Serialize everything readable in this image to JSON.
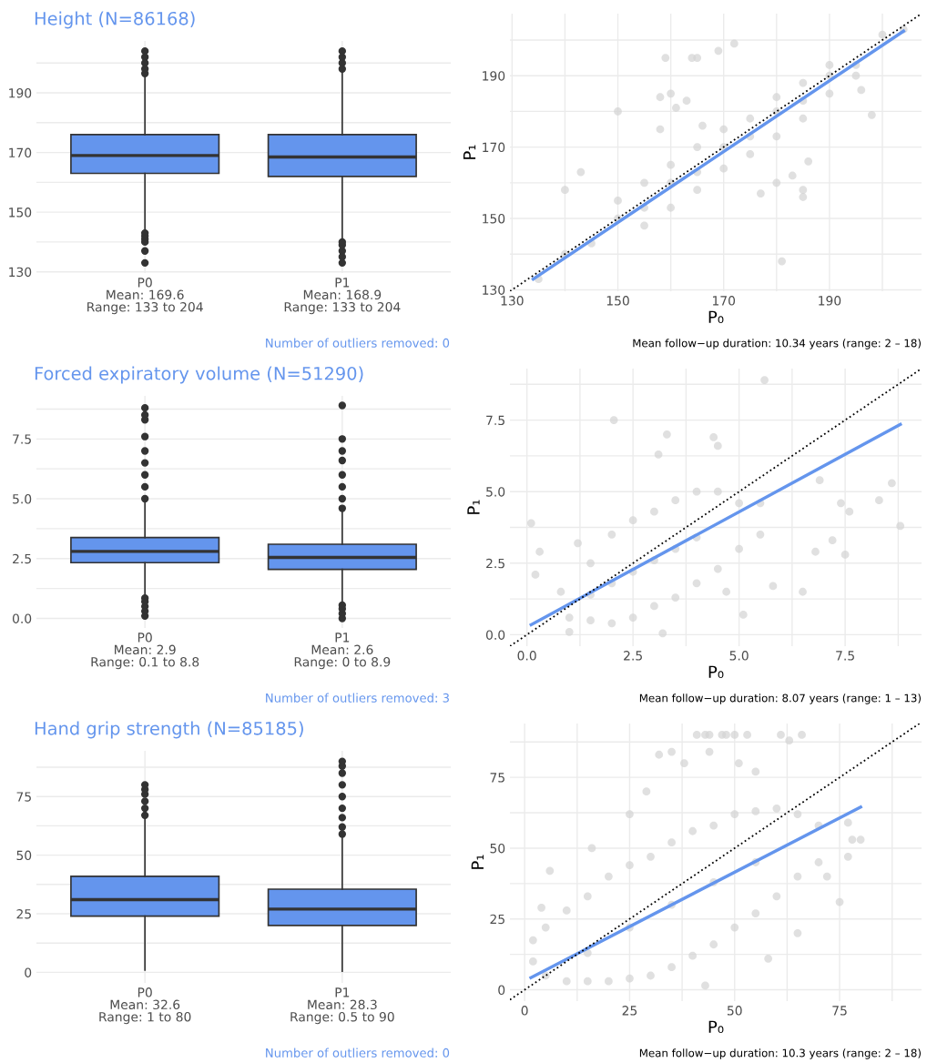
{
  "chart_data": [
    {
      "type": "box",
      "title": "Height (N=86168)",
      "categories": [
        "P0\nMean: 169.6\nRange: 133 to 204",
        "P1\nMean: 168.9\nRange: 133 to 204"
      ],
      "series": [
        {
          "color": "#6495ed",
          "boxes": [
            {
              "low": 143.5,
              "q1": 163,
              "median": 169,
              "q3": 176,
              "high": 196,
              "outliers": [
                133,
                137,
                140,
                141,
                142,
                143,
                196.5,
                198,
                200,
                202,
                204
              ]
            },
            {
              "low": 141,
              "q1": 162,
              "median": 168.5,
              "q3": 176,
              "high": 197,
              "outliers": [
                133,
                135,
                137,
                139,
                140,
                198,
                200,
                202,
                204
              ]
            }
          ]
        }
      ],
      "ylim": [
        129.6,
        207.4
      ],
      "yticks": [
        130,
        {
          "value": 140,
          "label": null
        },
        150,
        {
          "value": 160,
          "label": null
        },
        170,
        {
          "value": 180,
          "label": null
        },
        190,
        {
          "value": 200,
          "label": null
        }
      ],
      "grid": true,
      "annotations": [
        "Number of outliers removed: 0"
      ]
    },
    {
      "type": "scatter",
      "xlabel": "P₀",
      "ylabel": "P₁",
      "xlim": [
        129.6,
        207.4
      ],
      "ylim": [
        129.6,
        207.4
      ],
      "xticks": [
        130,
        {
          "value": 140,
          "label": null
        },
        150,
        {
          "value": 160,
          "label": null
        },
        170,
        {
          "value": 180,
          "label": null
        },
        190,
        {
          "value": 200,
          "label": null
        }
      ],
      "yticks": [
        130,
        {
          "value": 140,
          "label": null
        },
        150,
        {
          "value": 160,
          "label": null
        },
        170,
        {
          "value": 180,
          "label": null
        },
        190,
        {
          "value": 200,
          "label": null
        }
      ],
      "grid": true,
      "series": [
        {
          "type": "scatter",
          "color": "#d3d3d3",
          "x": [
            135,
            140,
            145,
            150,
            155,
            160,
            165,
            170,
            175,
            180,
            185,
            190,
            195,
            200,
            204,
            150,
            155,
            160,
            165,
            170,
            175,
            180,
            185,
            190,
            155,
            160,
            165,
            170,
            175,
            180,
            185,
            190,
            195,
            159,
            164,
            165,
            169,
            172,
            143,
            140,
            150,
            158,
            160,
            161,
            163,
            181,
            177,
            180,
            183,
            185,
            185,
            186,
            198,
            196,
            158,
            166
          ],
          "values": [
            133,
            140,
            143,
            150,
            153,
            160,
            163,
            170,
            173,
            180,
            183,
            190,
            193,
            201.5,
            203,
            155,
            160,
            165,
            170,
            175,
            178,
            184,
            188,
            193,
            148,
            153,
            158,
            164,
            168,
            173,
            178,
            185,
            190,
            195,
            195,
            195,
            197,
            199,
            163,
            158,
            180,
            184,
            185,
            181,
            183,
            138,
            157,
            160,
            162,
            158,
            156,
            166,
            179,
            186,
            175,
            176
          ]
        },
        {
          "type": "line",
          "color": "#6495ed",
          "x": [
            134,
            204
          ],
          "values": [
            133,
            202.5
          ]
        },
        {
          "type": "line",
          "color": "#000000",
          "line_style": "dotted",
          "x": [
            129.6,
            207.4
          ],
          "values": [
            129.6,
            207.4
          ]
        }
      ],
      "annotations": [
        "Mean follow−up duration: 10.34 years (range: 2 – 18)"
      ]
    },
    {
      "type": "box",
      "title": "Forced expiratory volume (N=51290)",
      "categories": [
        "P0\nMean: 2.9\nRange: 0.1 to 8.8",
        "P1\nMean: 2.6\nRange: 0 to 8.9"
      ],
      "series": [
        {
          "color": "#6495ed",
          "boxes": [
            {
              "low": 0.9,
              "q1": 2.33,
              "median": 2.8,
              "q3": 3.38,
              "high": 4.9,
              "outliers": [
                0.1,
                0.3,
                0.5,
                0.7,
                0.85,
                5.0,
                5.5,
                6.0,
                6.5,
                7.0,
                7.6,
                8.3,
                8.5,
                8.8
              ]
            },
            {
              "low": 0.6,
              "q1": 2.05,
              "median": 2.55,
              "q3": 3.1,
              "high": 4.55,
              "outliers": [
                0,
                0.2,
                0.4,
                0.55,
                4.6,
                5.0,
                5.5,
                6.0,
                6.6,
                7.0,
                7.5,
                8.9
              ]
            }
          ]
        }
      ],
      "ylim": [
        -0.4,
        9.3
      ],
      "yticks": [
        {
          "value": 0,
          "label": "0.0"
        },
        {
          "value": 1.25,
          "label": null
        },
        2.5,
        {
          "value": 3.75,
          "label": null
        },
        {
          "value": 5,
          "label": "5.0"
        },
        {
          "value": 6.25,
          "label": null
        },
        7.5,
        {
          "value": 8.75,
          "label": null
        }
      ],
      "grid": true,
      "annotations": [
        "Number of outliers removed: 3"
      ]
    },
    {
      "type": "scatter",
      "xlabel": "P₀",
      "ylabel": "P₁",
      "xlim": [
        -0.4,
        9.3
      ],
      "ylim": [
        -0.4,
        9.3
      ],
      "xticks": [
        {
          "value": 0,
          "label": "0.0"
        },
        {
          "value": 1.25,
          "label": null
        },
        2.5,
        {
          "value": 3.75,
          "label": null
        },
        {
          "value": 5,
          "label": "5.0"
        },
        {
          "value": 6.25,
          "label": null
        },
        7.5,
        {
          "value": 8.75,
          "label": null
        }
      ],
      "yticks": [
        {
          "value": 0,
          "label": "0.0"
        },
        {
          "value": 1.25,
          "label": null
        },
        2.5,
        {
          "value": 3.75,
          "label": null
        },
        {
          "value": 5,
          "label": "5.0"
        },
        {
          "value": 6.25,
          "label": null
        },
        7.5,
        {
          "value": 8.75,
          "label": null
        }
      ],
      "grid": true,
      "series": [
        {
          "type": "scatter",
          "color": "#d3d3d3",
          "x": [
            0.8,
            1,
            1.5,
            1.5,
            2,
            2,
            2.5,
            2.5,
            3,
            3,
            3.5,
            3.5,
            4,
            4,
            4.5,
            4.5,
            5,
            5,
            5.5,
            5.5,
            3,
            2.5,
            3.5,
            2,
            4,
            1.5,
            4.7,
            1.2,
            5.6,
            2.05,
            3.3,
            4.4,
            4.5,
            3.1,
            0.1,
            8.8,
            8.6,
            8.3,
            7.6,
            7.4,
            6.9,
            7.5,
            6.5,
            5.1,
            3.2,
            1.0,
            0.3,
            0.2,
            5.8,
            6.8,
            7.2
          ],
          "values": [
            1.5,
            0.6,
            0.5,
            2.5,
            0.4,
            3.5,
            0.6,
            4.0,
            1.0,
            4.3,
            1.3,
            4.7,
            1.8,
            5.0,
            2.3,
            5.0,
            3.0,
            4.6,
            3.5,
            4.6,
            2.6,
            2.2,
            3.0,
            1.8,
            3.4,
            1.4,
            1.5,
            3.2,
            8.9,
            7.5,
            7.0,
            6.9,
            6.6,
            6.3,
            3.9,
            3.8,
            5.3,
            4.7,
            4.3,
            4.6,
            5.4,
            2.8,
            1.5,
            0.7,
            0.05,
            0.1,
            2.9,
            2.1,
            1.7,
            2.9,
            3.3
          ]
        },
        {
          "type": "line",
          "color": "#6495ed",
          "x": [
            0.1,
            8.8
          ],
          "values": [
            0.35,
            7.35
          ]
        },
        {
          "type": "line",
          "color": "#000000",
          "line_style": "dotted",
          "x": [
            -0.4,
            9.3
          ],
          "values": [
            -0.4,
            9.3
          ]
        }
      ],
      "annotations": [
        "Mean follow−up duration: 8.07 years (range: 1 – 13)"
      ]
    },
    {
      "type": "box",
      "title": "Hand grip strength (N=85185)",
      "categories": [
        "P0\nMean: 32.6\nRange: 1 to 80",
        "P1\nMean: 28.3\nRange: 0.5 to 90"
      ],
      "series": [
        {
          "color": "#6495ed",
          "boxes": [
            {
              "low": 1,
              "q1": 24,
              "median": 31,
              "q3": 41,
              "high": 66,
              "outliers": [
                67,
                70,
                73,
                76,
                78,
                80
              ]
            },
            {
              "low": 0.5,
              "q1": 20,
              "median": 27,
              "q3": 35.5,
              "high": 58,
              "outliers": [
                59,
                62,
                66,
                70,
                75,
                80,
                85,
                88,
                90
              ]
            }
          ]
        }
      ],
      "ylim": [
        -4.5,
        94.5
      ],
      "yticks": [
        0,
        {
          "value": 12.5,
          "label": null
        },
        25,
        {
          "value": 37.5,
          "label": null
        },
        50,
        {
          "value": 62.5,
          "label": null
        },
        75,
        {
          "value": 87.5,
          "label": null
        }
      ],
      "grid": true,
      "annotations": [
        "Number of outliers removed: 0"
      ]
    },
    {
      "type": "scatter",
      "xlabel": "P₀",
      "ylabel": "P₁",
      "xlim": [
        -3.5,
        94.5
      ],
      "ylim": [
        -4,
        94
      ],
      "xticks": [
        0,
        {
          "value": 12.5,
          "label": null
        },
        25,
        {
          "value": 37.5,
          "label": null
        },
        50,
        {
          "value": 62.5,
          "label": null
        },
        75,
        {
          "value": 87.5,
          "label": null
        }
      ],
      "yticks": [
        0,
        {
          "value": 12.5,
          "label": null
        },
        25,
        {
          "value": 37.5,
          "label": null
        },
        50,
        {
          "value": 62.5,
          "label": null
        },
        75,
        {
          "value": 87.5,
          "label": null
        }
      ],
      "grid": true,
      "series": [
        {
          "type": "scatter",
          "color": "#d3d3d3",
          "x": [
            5,
            5,
            10,
            10,
            15,
            15,
            20,
            20,
            25,
            25,
            30,
            30,
            35,
            35,
            40,
            40,
            45,
            45,
            50,
            50,
            55,
            55,
            60,
            60,
            65,
            65,
            70,
            70,
            25,
            35,
            45,
            55,
            15,
            41,
            43,
            44,
            47,
            48,
            50,
            53,
            61,
            66,
            63,
            35,
            32,
            38,
            44,
            51,
            55,
            25,
            29,
            16,
            6,
            77,
            80,
            77,
            78,
            72,
            75,
            65,
            58,
            43,
            2,
            2,
            4
          ],
          "values": [
            5,
            22,
            3,
            28,
            3,
            33,
            3,
            40,
            4,
            44,
            5,
            47,
            8,
            52,
            12,
            56,
            16,
            58,
            22,
            62,
            27,
            63,
            33,
            64,
            40,
            62,
            45,
            58,
            22,
            30,
            38,
            45,
            13,
            90,
            90,
            90,
            90,
            90,
            90,
            90,
            90,
            90,
            88,
            84,
            83,
            80,
            84,
            80,
            77,
            62,
            70,
            50,
            42,
            47,
            53,
            59,
            53,
            40,
            31,
            20,
            11,
            1.5,
            17.5,
            10,
            29
          ]
        },
        {
          "type": "line",
          "color": "#6495ed",
          "x": [
            1.5,
            80
          ],
          "values": [
            4.3,
            64.5
          ]
        },
        {
          "type": "line",
          "color": "#000000",
          "line_style": "dotted",
          "x": [
            -3.5,
            94
          ],
          "values": [
            -3.5,
            94
          ]
        }
      ],
      "annotations": [
        "Mean follow−up duration: 10.3 years (range: 2 – 18)"
      ]
    }
  ]
}
